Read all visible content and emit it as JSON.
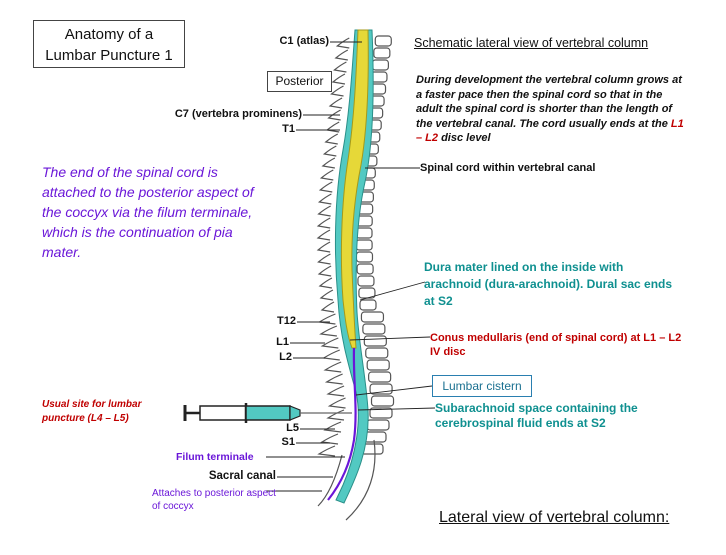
{
  "title": {
    "line1": "Anatomy of a",
    "line2": "Lumbar Puncture 1"
  },
  "posterior_label": "Posterior",
  "schematic_heading": "Schematic lateral view of vertebral column",
  "development_text": {
    "part1": "During development the vertebral column grows at a faster pace then the spinal cord so that in the adult the spinal cord is shorter than the length of the vertebral canal. The cord usually ends at the ",
    "highlight": "L1 – L2",
    "part2": " disc level"
  },
  "filum_note": "The end of the spinal cord is attached to the posterior aspect of the coccyx via the filum terminale, which is the continuation of pia mater.",
  "vertebra_labels": {
    "c1": "C1 (atlas)",
    "c7": "C7 (vertebra prominens)",
    "t1": "T1",
    "t12": "T12",
    "l1": "L1",
    "l2": "L2",
    "l5": "L5",
    "s1": "S1"
  },
  "spinal_cord_label": "Spinal cord within vertebral canal",
  "dura_text": "Dura mater lined on the inside with arachnoid (dura-arachnoid). Dural sac ends at S2",
  "conus_text": "Conus medullaris (end of spinal cord) at L1 – L2 IV disc",
  "lumbar_cistern": "Lumbar cistern",
  "subarachnoid_text": "Subarachnoid space containing the cerebrospinal fluid ends at S2",
  "usual_site": "Usual site for lumbar puncture (L4 – L5)",
  "filum_terminale_label": "Filum terminale",
  "sacral_canal_label": "Sacral canal",
  "attaches_text": "Attaches to posterior aspect of coccyx",
  "lateral_caption": "Lateral view of vertebral column:",
  "colors": {
    "cord": "#e6d838",
    "sac": "#52c9c2",
    "filum": "#6a16d8",
    "conus_label": "#c00000",
    "dura_label": "#0f9090"
  }
}
